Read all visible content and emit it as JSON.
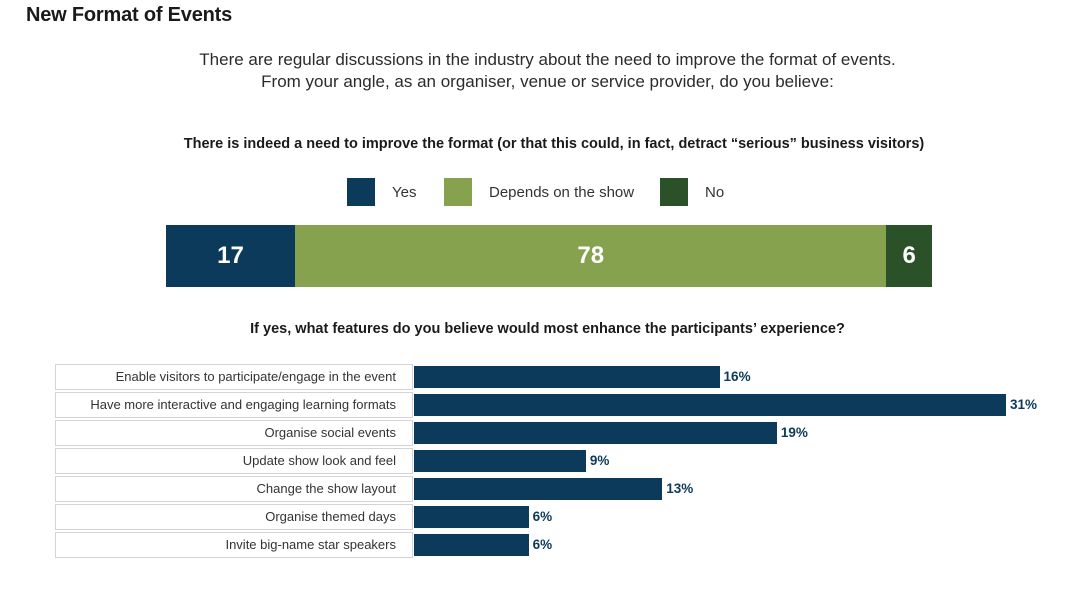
{
  "page_title": "New Format of Events",
  "intro": {
    "line1": "There are regular discussions in the industry about the need to improve the format of events.",
    "line2": "From your angle, as an organiser, venue or service provider, do you believe:"
  },
  "chart_data": [
    {
      "type": "bar",
      "orientation": "horizontal-stacked",
      "title": "There is indeed a need to improve the format (or that this could, in fact, detract “serious” business visitors)",
      "legend": [
        "Yes",
        "Depends on the show",
        "No"
      ],
      "series": [
        {
          "name": "Yes",
          "values": [
            17
          ],
          "color": "#0c3a5b"
        },
        {
          "name": "Depends on the show",
          "values": [
            78
          ],
          "color": "#87a24f"
        },
        {
          "name": "No",
          "values": [
            6
          ],
          "color": "#2a5128"
        }
      ]
    },
    {
      "type": "bar",
      "orientation": "horizontal",
      "title": "If yes, what features do you believe would most enhance the participants’ experience?",
      "categories": [
        "Enable visitors to participate/engage in the event",
        "Have more interactive and engaging learning formats",
        "Organise social events",
        "Update show look and feel",
        "Change the show layout",
        "Organise themed days",
        "Invite big-name star speakers"
      ],
      "values": [
        16,
        31,
        19,
        9,
        13,
        6,
        6
      ],
      "value_labels": [
        "16%",
        "31%",
        "19%",
        "9%",
        "13%",
        "6%",
        "6%"
      ],
      "unit": "%",
      "color": "#0c3a5b",
      "xlim": [
        0,
        31
      ]
    }
  ]
}
